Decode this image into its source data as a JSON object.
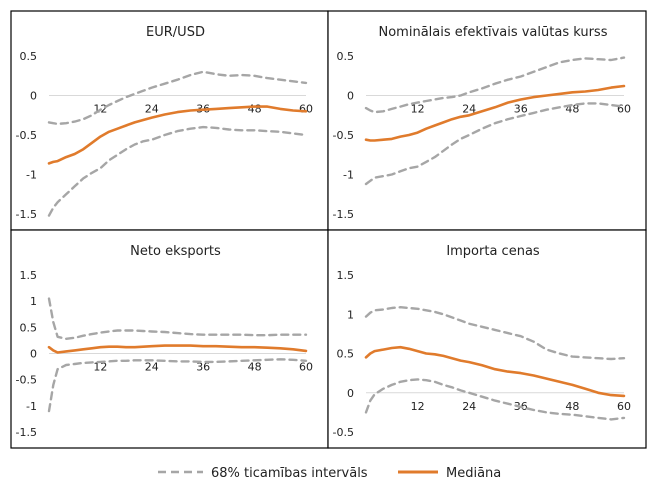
{
  "legend": {
    "ci_label": "68% ticamības intervāls",
    "median_label": "Mediāna",
    "ci_color": "#a6a6a6",
    "median_color": "#e07b2c"
  },
  "chart_data": [
    {
      "type": "line",
      "title": "EUR/USD",
      "ylim": [
        -1.5,
        0.5
      ],
      "yticks": [
        "0.5",
        "0",
        "-0.5",
        "-1",
        "-1.5"
      ],
      "ytick_values": [
        0.5,
        0,
        -0.5,
        -1,
        -1.5
      ],
      "xlim": [
        0,
        60
      ],
      "xticks": [
        "12",
        "24",
        "36",
        "48",
        "60"
      ],
      "xtick_values": [
        12,
        24,
        36,
        48,
        60
      ],
      "grid": false,
      "x": [
        0,
        1,
        2,
        4,
        6,
        8,
        10,
        12,
        14,
        16,
        18,
        20,
        22,
        24,
        27,
        30,
        33,
        36,
        39,
        42,
        45,
        48,
        51,
        54,
        57,
        60
      ],
      "series": [
        {
          "name": "Mediāna",
          "values": [
            -0.86,
            -0.84,
            -0.83,
            -0.78,
            -0.74,
            -0.68,
            -0.6,
            -0.52,
            -0.46,
            -0.42,
            -0.38,
            -0.34,
            -0.31,
            -0.28,
            -0.24,
            -0.21,
            -0.19,
            -0.18,
            -0.17,
            -0.16,
            -0.15,
            -0.14,
            -0.14,
            -0.17,
            -0.19,
            -0.2
          ]
        },
        {
          "name": "68% ticamības intervāls (augšējā)",
          "values": [
            -0.34,
            -0.35,
            -0.36,
            -0.35,
            -0.33,
            -0.3,
            -0.25,
            -0.18,
            -0.12,
            -0.07,
            -0.02,
            0.02,
            0.06,
            0.1,
            0.15,
            0.2,
            0.26,
            0.3,
            0.27,
            0.25,
            0.26,
            0.25,
            0.22,
            0.2,
            0.18,
            0.16
          ]
        },
        {
          "name": "68% ticamības intervāls (apakšējā)",
          "values": [
            -1.52,
            -1.42,
            -1.35,
            -1.25,
            -1.15,
            -1.05,
            -0.98,
            -0.92,
            -0.82,
            -0.75,
            -0.68,
            -0.62,
            -0.58,
            -0.56,
            -0.5,
            -0.45,
            -0.42,
            -0.4,
            -0.41,
            -0.43,
            -0.44,
            -0.44,
            -0.45,
            -0.46,
            -0.48,
            -0.5
          ]
        }
      ]
    },
    {
      "type": "line",
      "title": "Nominālais efektīvais valūtas kurss",
      "ylim": [
        -1.5,
        0.5
      ],
      "yticks": [
        "0.5",
        "0",
        "-0.5",
        "-1",
        "-1.5"
      ],
      "ytick_values": [
        0.5,
        0,
        -0.5,
        -1,
        -1.5
      ],
      "xlim": [
        0,
        60
      ],
      "xticks": [
        "12",
        "24",
        "36",
        "48",
        "60"
      ],
      "xtick_values": [
        12,
        24,
        36,
        48,
        60
      ],
      "grid": false,
      "x": [
        0,
        1,
        2,
        4,
        6,
        8,
        10,
        12,
        14,
        16,
        18,
        20,
        22,
        24,
        27,
        30,
        33,
        36,
        39,
        42,
        45,
        48,
        51,
        54,
        57,
        60
      ],
      "series": [
        {
          "name": "Mediāna",
          "values": [
            -0.56,
            -0.57,
            -0.57,
            -0.56,
            -0.55,
            -0.52,
            -0.5,
            -0.47,
            -0.42,
            -0.38,
            -0.34,
            -0.3,
            -0.27,
            -0.25,
            -0.2,
            -0.15,
            -0.09,
            -0.05,
            -0.02,
            0.0,
            0.02,
            0.04,
            0.05,
            0.07,
            0.1,
            0.12
          ]
        },
        {
          "name": "68% ticamības intervāls (augšējā)",
          "values": [
            -0.16,
            -0.19,
            -0.21,
            -0.2,
            -0.17,
            -0.14,
            -0.11,
            -0.09,
            -0.07,
            -0.05,
            -0.03,
            -0.02,
            0.0,
            0.04,
            0.09,
            0.15,
            0.2,
            0.24,
            0.3,
            0.36,
            0.42,
            0.45,
            0.47,
            0.46,
            0.45,
            0.48
          ]
        },
        {
          "name": "68% ticamības intervāls (apakšējā)",
          "values": [
            -1.12,
            -1.08,
            -1.04,
            -1.02,
            -1.0,
            -0.96,
            -0.92,
            -0.9,
            -0.84,
            -0.78,
            -0.7,
            -0.62,
            -0.55,
            -0.5,
            -0.42,
            -0.35,
            -0.3,
            -0.26,
            -0.22,
            -0.18,
            -0.15,
            -0.12,
            -0.1,
            -0.1,
            -0.12,
            -0.14
          ]
        }
      ]
    },
    {
      "type": "line",
      "title": "Neto eksports",
      "ylim": [
        -1.5,
        1.5
      ],
      "yticks": [
        "1.5",
        "1",
        "0.5",
        "0",
        "-0.5",
        "-1",
        "-1.5"
      ],
      "ytick_values": [
        1.5,
        1,
        0.5,
        0,
        -0.5,
        -1,
        -1.5
      ],
      "xlim": [
        0,
        60
      ],
      "xticks": [
        "12",
        "24",
        "36",
        "48",
        "60"
      ],
      "xtick_values": [
        12,
        24,
        36,
        48,
        60
      ],
      "grid": false,
      "x": [
        0,
        1,
        2,
        4,
        6,
        8,
        10,
        12,
        14,
        16,
        18,
        20,
        22,
        24,
        27,
        30,
        33,
        36,
        39,
        42,
        45,
        48,
        51,
        54,
        57,
        60
      ],
      "series": [
        {
          "name": "Mediāna",
          "values": [
            0.12,
            0.06,
            0.02,
            0.04,
            0.06,
            0.08,
            0.1,
            0.12,
            0.13,
            0.13,
            0.12,
            0.12,
            0.13,
            0.14,
            0.15,
            0.15,
            0.15,
            0.14,
            0.14,
            0.13,
            0.12,
            0.12,
            0.11,
            0.1,
            0.08,
            0.05
          ]
        },
        {
          "name": "68% ticamības intervāls (augšējā)",
          "values": [
            1.05,
            0.6,
            0.32,
            0.28,
            0.3,
            0.34,
            0.37,
            0.4,
            0.42,
            0.44,
            0.44,
            0.44,
            0.43,
            0.42,
            0.41,
            0.39,
            0.37,
            0.36,
            0.36,
            0.36,
            0.36,
            0.35,
            0.35,
            0.36,
            0.36,
            0.36
          ]
        },
        {
          "name": "68% ticamības intervāls (apakšējā)",
          "values": [
            -1.1,
            -0.6,
            -0.3,
            -0.22,
            -0.2,
            -0.18,
            -0.17,
            -0.16,
            -0.15,
            -0.14,
            -0.14,
            -0.13,
            -0.13,
            -0.13,
            -0.14,
            -0.15,
            -0.15,
            -0.16,
            -0.16,
            -0.15,
            -0.14,
            -0.13,
            -0.12,
            -0.11,
            -0.12,
            -0.14
          ]
        }
      ]
    },
    {
      "type": "line",
      "title": "Importa cenas",
      "ylim": [
        -0.5,
        1.5
      ],
      "yticks": [
        "1.5",
        "1",
        "0.5",
        "0",
        "-0.5"
      ],
      "ytick_values": [
        1.5,
        1,
        0.5,
        0,
        -0.5
      ],
      "xlim": [
        0,
        60
      ],
      "xticks": [
        "12",
        "24",
        "36",
        "48",
        "60"
      ],
      "xtick_values": [
        12,
        24,
        36,
        48,
        60
      ],
      "grid": false,
      "x": [
        0,
        1,
        2,
        4,
        6,
        8,
        10,
        12,
        14,
        16,
        18,
        20,
        22,
        24,
        27,
        30,
        33,
        36,
        39,
        42,
        45,
        48,
        51,
        54,
        57,
        60
      ],
      "series": [
        {
          "name": "Mediāna",
          "values": [
            0.45,
            0.5,
            0.53,
            0.55,
            0.57,
            0.58,
            0.56,
            0.53,
            0.5,
            0.49,
            0.47,
            0.44,
            0.41,
            0.39,
            0.35,
            0.3,
            0.27,
            0.25,
            0.22,
            0.18,
            0.14,
            0.1,
            0.05,
            0.0,
            -0.03,
            -0.04
          ]
        },
        {
          "name": "68% ticamības intervāls (augšējā)",
          "values": [
            0.97,
            1.02,
            1.05,
            1.06,
            1.08,
            1.09,
            1.08,
            1.07,
            1.05,
            1.03,
            1.0,
            0.96,
            0.92,
            0.88,
            0.84,
            0.8,
            0.76,
            0.72,
            0.65,
            0.55,
            0.5,
            0.46,
            0.45,
            0.44,
            0.43,
            0.44
          ]
        },
        {
          "name": "68% ticamības intervāls (apakšējā)",
          "values": [
            -0.25,
            -0.1,
            -0.02,
            0.05,
            0.1,
            0.14,
            0.16,
            0.17,
            0.16,
            0.14,
            0.1,
            0.07,
            0.03,
            0.0,
            -0.05,
            -0.1,
            -0.14,
            -0.18,
            -0.22,
            -0.25,
            -0.27,
            -0.28,
            -0.3,
            -0.32,
            -0.34,
            -0.32
          ]
        }
      ]
    }
  ]
}
